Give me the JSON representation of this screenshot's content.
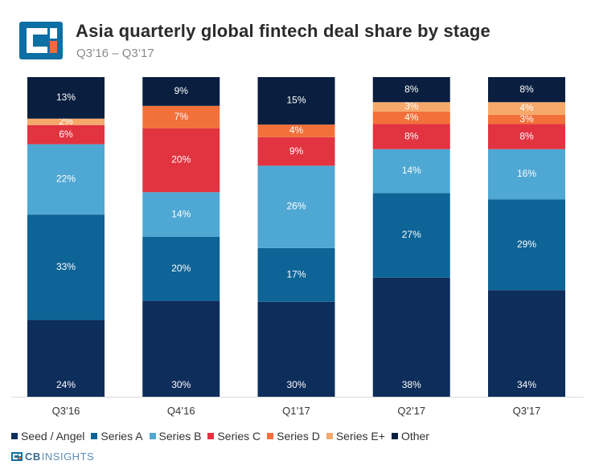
{
  "header": {
    "title": "Asia quarterly global fintech deal share by stage",
    "subtitle": "Q3’16 – Q3’17"
  },
  "brand": {
    "cb": "CB",
    "insights": "INSIGHTS"
  },
  "colors": {
    "logo_blue": "#0d6fa3",
    "logo_orange": "#f26b36"
  },
  "chart_data": {
    "type": "bar",
    "stacked": true,
    "percent_stacked": true,
    "title": "Asia quarterly global fintech deal share by stage",
    "subtitle": "Q3’16 – Q3’17",
    "categories": [
      "Q3’16",
      "Q4’16",
      "Q1’17",
      "Q2’17",
      "Q3’17"
    ],
    "ylim": [
      0,
      100
    ],
    "grid": false,
    "legend_position": "bottom",
    "series": [
      {
        "name": "Seed / Angel",
        "color": "#0d2d5b",
        "label_color": "#ffffff",
        "values": [
          24,
          30,
          30,
          38,
          34
        ]
      },
      {
        "name": "Series A",
        "color": "#0e6496",
        "label_color": "#ffffff",
        "values": [
          33,
          20,
          17,
          27,
          29
        ]
      },
      {
        "name": "Series B",
        "color": "#4fa8d3",
        "label_color": "#ffffff",
        "values": [
          22,
          14,
          26,
          14,
          16
        ]
      },
      {
        "name": "Series C",
        "color": "#e23341",
        "label_color": "#ffffff",
        "values": [
          6,
          20,
          9,
          8,
          8
        ]
      },
      {
        "name": "Series D",
        "color": "#f2703a",
        "label_color": "#ffffff",
        "values": [
          0,
          7,
          4,
          4,
          3
        ]
      },
      {
        "name": "Series E+",
        "color": "#f6a96a",
        "label_color": "#ffffff",
        "values": [
          2,
          0,
          0,
          3,
          4
        ]
      },
      {
        "name": "Other",
        "color": "#0a1f3f",
        "label_color": "#ffffff",
        "values": [
          13,
          9,
          15,
          8,
          8
        ]
      }
    ]
  }
}
